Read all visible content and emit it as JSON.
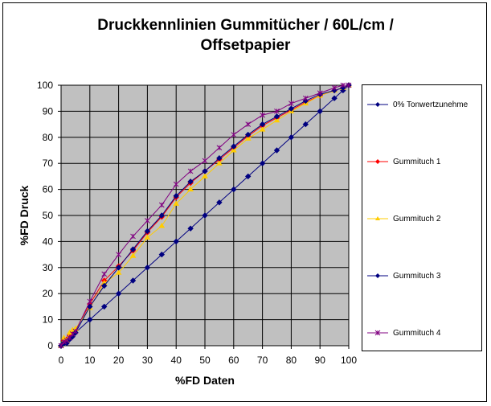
{
  "title_line1": "Druckkennlinien Gummitücher / 60L/cm /",
  "title_line2": "Offsetpapier",
  "chart_data": {
    "type": "line",
    "title": "Druckkennlinien Gummitücher / 60L/cm / Offsetpapier",
    "xlabel": "%FD Daten",
    "ylabel": "%FD Druck",
    "xlim": [
      0,
      100
    ],
    "ylim": [
      0,
      100
    ],
    "xticks": [
      0,
      10,
      20,
      30,
      40,
      50,
      60,
      70,
      80,
      90,
      100
    ],
    "yticks": [
      0,
      10,
      20,
      30,
      40,
      50,
      60,
      70,
      80,
      90,
      100
    ],
    "grid": true,
    "legend_position": "right",
    "plot_background": "#c0c0c0",
    "series": [
      {
        "name": "0% Tonwertzunehme",
        "color": "#000080",
        "marker": "diamond",
        "x": [
          0,
          1,
          2,
          3,
          4,
          5,
          10,
          15,
          20,
          25,
          30,
          35,
          40,
          45,
          50,
          55,
          60,
          65,
          70,
          75,
          80,
          85,
          90,
          95,
          98,
          100
        ],
        "y": [
          0,
          1,
          2,
          3,
          4,
          5,
          10,
          15,
          20,
          25,
          30,
          35,
          40,
          45,
          50,
          55,
          60,
          65,
          70,
          75,
          80,
          85,
          90,
          95,
          98,
          100
        ]
      },
      {
        "name": "Gummituch 1",
        "color": "#ff0000",
        "marker": "diamond",
        "x": [
          0,
          1,
          2,
          3,
          4,
          5,
          10,
          15,
          20,
          25,
          30,
          35,
          40,
          45,
          50,
          55,
          60,
          65,
          70,
          75,
          80,
          85,
          90,
          95,
          98,
          100
        ],
        "y": [
          0,
          2,
          2.5,
          4,
          5.5,
          6,
          16,
          25,
          30.5,
          36.5,
          43.5,
          49.5,
          57,
          62.5,
          67,
          71.5,
          76,
          80.5,
          84.5,
          87.5,
          90.5,
          93.5,
          96,
          98,
          99,
          100
        ]
      },
      {
        "name": "Gummituch 2",
        "color": "#ffcc00",
        "marker": "triangle",
        "x": [
          0,
          1,
          2,
          3,
          4,
          5,
          10,
          15,
          20,
          25,
          30,
          35,
          40,
          45,
          50,
          55,
          60,
          65,
          70,
          75,
          80,
          85,
          90,
          95,
          98,
          100
        ],
        "y": [
          0,
          3,
          2,
          5,
          6,
          6.5,
          14.5,
          24,
          28,
          34.5,
          41.5,
          46,
          54.5,
          60,
          65,
          70,
          75,
          79.5,
          83,
          86.5,
          90,
          93,
          96,
          98,
          99,
          100
        ]
      },
      {
        "name": "Gummituch 3",
        "color": "#000080",
        "marker": "diamond",
        "x": [
          0,
          1,
          2,
          3,
          4,
          5,
          10,
          15,
          20,
          25,
          30,
          35,
          40,
          45,
          50,
          55,
          60,
          65,
          70,
          75,
          80,
          85,
          90,
          95,
          98,
          100
        ],
        "y": [
          0,
          1,
          1,
          2.5,
          3.5,
          5,
          15,
          23,
          30,
          37,
          44,
          50,
          57.5,
          63,
          67,
          72,
          76.5,
          81,
          85,
          88,
          91,
          94,
          96.5,
          98,
          99,
          100
        ]
      },
      {
        "name": "Gummituch 4",
        "color": "#800080",
        "marker": "x",
        "x": [
          0,
          1,
          2,
          3,
          4,
          5,
          10,
          15,
          20,
          25,
          30,
          35,
          40,
          45,
          50,
          55,
          60,
          65,
          70,
          75,
          80,
          85,
          90,
          95,
          98,
          100
        ],
        "y": [
          0,
          1.5,
          2,
          3,
          4.5,
          5.5,
          17,
          27.5,
          35,
          42,
          48,
          54,
          62,
          67,
          71,
          76,
          81,
          85,
          88.5,
          90,
          93,
          95,
          97,
          99,
          100,
          100
        ]
      }
    ]
  }
}
